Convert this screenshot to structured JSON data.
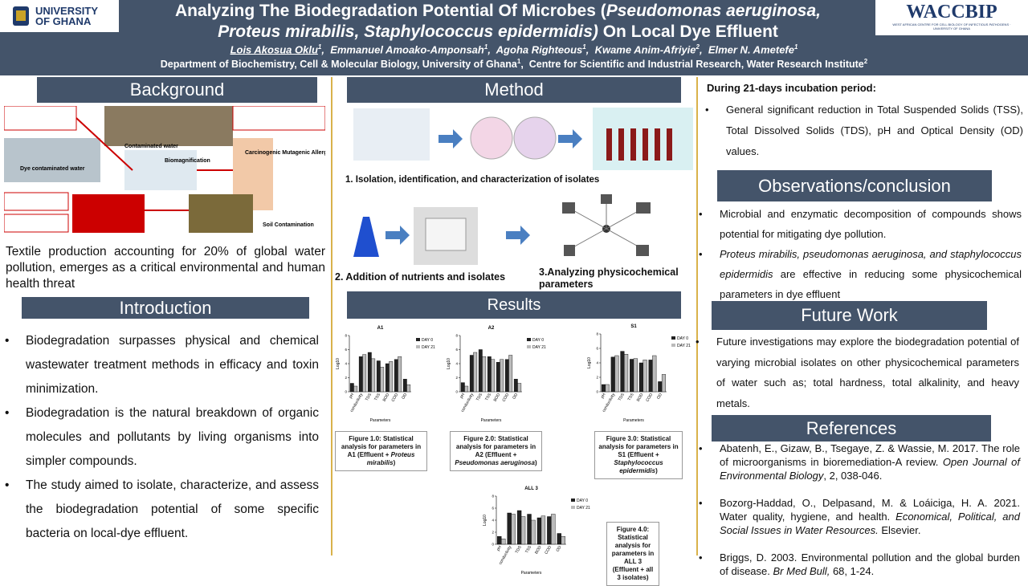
{
  "header": {
    "logo_left": "UNIVERSITY OF GHANA",
    "logo_right": "WACCBIP",
    "logo_right_sub": "WEST AFRICAN CENTRE FOR CELL BIOLOGY OF INFECTIOUS PATHOGENS · UNIVERSITY OF GHANA",
    "title_line1": "Analyzing The Biodegradation Potential Of Microbes (",
    "title_line1_italic": "Pseudomonas aeruginosa,",
    "title_line2_italic": "Proteus mirabilis, Staphylococcus epidermidis)",
    "title_line2": "On Local Dye Effluent",
    "authors": [
      {
        "name": "Lois Akosua Oklu",
        "sup": 1
      },
      {
        "name": "Emmanuel Amoako-Amponsah",
        "sup": 1
      },
      {
        "name": "Agoha Righteous",
        "sup": 1
      },
      {
        "name": "Kwame Anim-Afriyie",
        "sup": 2
      },
      {
        "name": "Elmer N. Ametefe",
        "sup": 1
      }
    ],
    "affiliations": [
      {
        "name": "Department of Biochemistry, Cell & Molecular Biology, University of Ghana",
        "sup": 1
      },
      {
        "name": "Centre for Scientific and Industrial Research, Water Research Institute",
        "sup": 2
      }
    ]
  },
  "background": {
    "heading": "Background",
    "figure_labels": [
      "Contaminated water",
      "Dye contaminated water",
      "Biomagnification",
      "Soil Contamination",
      "Carcinogenic Mutagenic Allergic Toxic"
    ],
    "text": "Textile production accounting for 20% of global water pollution, emerges as a critical environmental and human health threat"
  },
  "introduction": {
    "heading": "Introduction",
    "bullets": [
      "Biodegradation surpasses physical and chemical wastewater treatment methods in efficacy and toxin minimization.",
      "Biodegradation is the natural breakdown of organic molecules and pollutants by living organisms into simpler compounds.",
      "The study aimed to isolate, characterize, and assess the biodegradation potential of some specific bacteria on local-dye effluent."
    ]
  },
  "method": {
    "heading": "Method",
    "steps": [
      "1. Isolation, identification, and characterization of isolates",
      "2. Addition of nutrients and isolates",
      "3.Analyzing physicochemical parameters"
    ]
  },
  "results": {
    "heading": "Results"
  },
  "chart_data": [
    {
      "type": "bar",
      "title": "A1",
      "categories": [
        "pH",
        "conductivity",
        "TDS",
        "TSS",
        "BOD",
        "COD",
        "OD"
      ],
      "series": [
        {
          "name": "DAY 0",
          "color": "#222222",
          "values": [
            1.2,
            5.0,
            5.6,
            4.4,
            4.0,
            4.6,
            1.8
          ]
        },
        {
          "name": "DAY 21",
          "color": "#bbbbbb",
          "values": [
            0.8,
            5.3,
            4.7,
            3.5,
            4.3,
            5.0,
            1.0
          ]
        }
      ],
      "ylim": [
        0,
        8
      ],
      "yticks": [
        0,
        2,
        4,
        6,
        8
      ],
      "ylabel": "Log10",
      "xlabel": "Parameters",
      "caption": "Figure 1.0: Statistical analysis for parameters in A1 (Effluent +",
      "caption_italic": "Proteus mirabilis",
      "caption_end": ")"
    },
    {
      "type": "bar",
      "title": "A2",
      "categories": [
        "pH",
        "conductivity",
        "TDS",
        "TSS",
        "BOD",
        "COD",
        "OD"
      ],
      "series": [
        {
          "name": "DAY 0",
          "color": "#222222",
          "values": [
            1.3,
            5.2,
            6.0,
            5.0,
            4.2,
            4.6,
            1.8
          ]
        },
        {
          "name": "DAY 21",
          "color": "#bbbbbb",
          "values": [
            0.8,
            5.6,
            5.0,
            4.6,
            4.6,
            5.2,
            1.2
          ]
        }
      ],
      "ylim": [
        0,
        8
      ],
      "yticks": [
        0,
        2,
        4,
        6,
        8
      ],
      "ylabel": "Log10",
      "xlabel": "Parameters",
      "caption": "Figure 2.0: Statistical analysis for parameters in A2 (Effluent +",
      "caption_italic": "Pseudomonas aeruginosa",
      "caption_end": ")"
    },
    {
      "type": "bar",
      "title": "S1",
      "categories": [
        "pH",
        "conductivity",
        "TDS",
        "TSS",
        "BOD",
        "COD",
        "OD"
      ],
      "series": [
        {
          "name": "DAY 0",
          "color": "#222222",
          "values": [
            1.0,
            4.8,
            5.6,
            4.5,
            4.0,
            4.4,
            1.4
          ]
        },
        {
          "name": "DAY 21",
          "color": "#bbbbbb",
          "values": [
            1.0,
            5.0,
            5.2,
            4.6,
            4.4,
            5.0,
            2.4
          ]
        }
      ],
      "ylim": [
        0,
        8
      ],
      "yticks": [
        0,
        2,
        4,
        6,
        8
      ],
      "ylabel": "Log10",
      "xlabel": "Parameters",
      "caption": "Figure 3.0: Statistical analysis for parameters in S1 (Effluent +",
      "caption_italic": "Staphylococcus epidermidis",
      "caption_end": ")"
    },
    {
      "type": "bar",
      "title": "ALL 3",
      "categories": [
        "pH",
        "conductivity",
        "TDS",
        "TSS",
        "BOD",
        "COD",
        "OD"
      ],
      "series": [
        {
          "name": "DAY 0",
          "color": "#222222",
          "values": [
            1.3,
            5.2,
            5.6,
            5.0,
            4.4,
            4.6,
            1.8
          ]
        },
        {
          "name": "DAY 21",
          "color": "#bbbbbb",
          "values": [
            0.9,
            5.0,
            4.6,
            4.0,
            4.7,
            5.0,
            1.3
          ]
        }
      ],
      "ylim": [
        0,
        8
      ],
      "yticks": [
        0,
        2,
        4,
        6,
        8
      ],
      "ylabel": "Log10",
      "xlabel": "Parameters",
      "caption": "Figure 4.0: Statistical analysis for parameters in ALL 3 (Effluent + all 3 isolates)"
    }
  ],
  "incubation": {
    "heading": "During 21-days incubation period:",
    "bullet": "General significant reduction in Total Suspended Solids (TSS), Total Dissolved Solids (TDS), pH and Optical Density (OD) values."
  },
  "observations": {
    "heading": "Observations/conclusion",
    "bullet1": "Microbial and enzymatic decomposition of compounds shows potential for mitigating dye pollution.",
    "bullet2_italic": "Proteus mirabilis, pseudomonas aeruginosa, and staphylococcus epidermidis",
    "bullet2": "are effective in reducing some physicochemical parameters in dye effluent"
  },
  "future_work": {
    "heading": "Future Work",
    "bullet": "Future investigations may explore the biodegradation potential of varying microbial isolates on other physicochemical parameters of water such as; total hardness, total alkalinity, and heavy metals."
  },
  "references": {
    "heading": "References",
    "items": [
      {
        "text": "Abatenh, E., Gizaw, B., Tsegaye, Z. & Wassie, M. 2017. The role of microorganisms in bioremediation-A review.",
        "journal": "Open Journal of Environmental Biology",
        "rest": ", 2, 038-046."
      },
      {
        "text": "Bozorg-Haddad, O., Delpasand, M. & Loáiciga, H. A. 2021. Water quality, hygiene, and health.",
        "journal": "Economical, Political, and Social Issues in Water Resources.",
        "rest": "Elsevier."
      },
      {
        "text": "Briggs, D. 2003. Environmental pollution and the global burden of disease.",
        "journal": "Br Med Bull,",
        "rest": "68, 1-24."
      }
    ]
  }
}
